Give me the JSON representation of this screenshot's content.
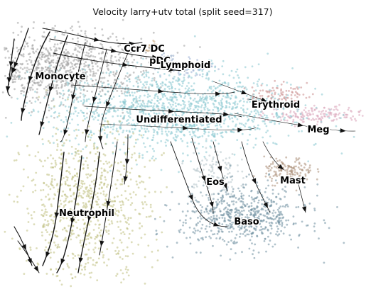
{
  "chart_data": {
    "type": "scatter",
    "title": "Velocity larry+utv total (split seed=317)",
    "xlabel": "",
    "ylabel": "",
    "grid": false,
    "legend": "on data",
    "overlay": "velocity streamlines with arrowheads",
    "clusters": [
      {
        "name": "Ccr7 DC",
        "color": "#c8a57c",
        "x": 0.4,
        "y": 0.9,
        "spread": [
          0.015,
          0.012
        ],
        "count": 25
      },
      {
        "name": "pDC",
        "color": "#8fa7c7",
        "x": 0.45,
        "y": 0.86,
        "spread": [
          0.015,
          0.012
        ],
        "count": 25
      },
      {
        "name": "Lymphoid",
        "color": "#9aaed4",
        "x": 0.52,
        "y": 0.82,
        "spread": [
          0.04,
          0.02
        ],
        "count": 60
      },
      {
        "name": "Monocyte",
        "color": "#9e9e9e",
        "x": 0.15,
        "y": 0.82,
        "spread": [
          0.12,
          0.07
        ],
        "count": 900
      },
      {
        "name": "Erythroid",
        "color": "#c98a8a",
        "x": 0.77,
        "y": 0.72,
        "spread": [
          0.04,
          0.02
        ],
        "count": 90
      },
      {
        "name": "Meg",
        "color": "#d9a3b8",
        "x": 0.88,
        "y": 0.64,
        "spread": [
          0.07,
          0.018
        ],
        "count": 160
      },
      {
        "name": "Undifferentiated",
        "color": "#86c6cf",
        "x": 0.47,
        "y": 0.66,
        "spread": [
          0.17,
          0.08
        ],
        "count": 1400
      },
      {
        "name": "Eos",
        "color": "#b3c2c9",
        "x": 0.58,
        "y": 0.42,
        "spread": [
          0.035,
          0.05
        ],
        "count": 110
      },
      {
        "name": "Mast",
        "color": "#a98c74",
        "x": 0.8,
        "y": 0.42,
        "spread": [
          0.035,
          0.025
        ],
        "count": 130
      },
      {
        "name": "Baso",
        "color": "#6f8fa0",
        "x": 0.67,
        "y": 0.24,
        "spread": [
          0.09,
          0.06
        ],
        "count": 650
      },
      {
        "name": "Neutrophil",
        "color": "#bfc07f",
        "x": 0.22,
        "y": 0.28,
        "spread": [
          0.09,
          0.15
        ],
        "count": 850
      }
    ]
  }
}
